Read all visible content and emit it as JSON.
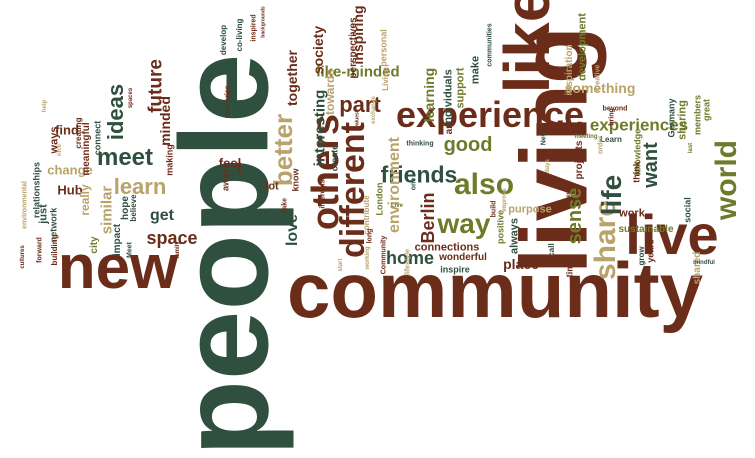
{
  "palette": {
    "dark_green": "#2f4f3f",
    "brown": "#6b2d1a",
    "olive": "#6f7a2a",
    "tan": "#b9a36a",
    "background": "#ffffff"
  },
  "words": [
    {
      "text": "people",
      "color": "dark_green"
    },
    {
      "text": "community",
      "color": "brown"
    },
    {
      "text": "living",
      "color": "brown"
    },
    {
      "text": "like",
      "color": "brown"
    },
    {
      "text": "new",
      "color": "brown"
    },
    {
      "text": "live",
      "color": "brown"
    },
    {
      "text": "experience",
      "color": "brown"
    },
    {
      "text": "others",
      "color": "brown"
    },
    {
      "text": "different",
      "color": "brown"
    },
    {
      "text": "also",
      "color": "olive"
    },
    {
      "text": "share",
      "color": "tan"
    },
    {
      "text": "world",
      "color": "olive"
    },
    {
      "text": "learn",
      "color": "tan"
    },
    {
      "text": "way",
      "color": "olive"
    },
    {
      "text": "meet",
      "color": "dark_green"
    },
    {
      "text": "better",
      "color": "tan"
    },
    {
      "text": "friends",
      "color": "dark_green"
    },
    {
      "text": "life",
      "color": "dark_green"
    },
    {
      "text": "want",
      "color": "dark_green"
    },
    {
      "text": "ideas",
      "color": "dark_green"
    },
    {
      "text": "future",
      "color": "brown"
    },
    {
      "text": "part",
      "color": "brown"
    },
    {
      "text": "space",
      "color": "brown"
    },
    {
      "text": "experiences",
      "color": "olive"
    },
    {
      "text": "good",
      "color": "olive"
    },
    {
      "text": "love",
      "color": "dark_green"
    },
    {
      "text": "home",
      "color": "dark_green"
    },
    {
      "text": "Berlin",
      "color": "brown"
    },
    {
      "text": "sense",
      "color": "olive"
    },
    {
      "text": "environment",
      "color": "tan"
    },
    {
      "text": "interesting",
      "color": "dark_green"
    },
    {
      "text": "like-minded",
      "color": "olive"
    },
    {
      "text": "inspiring",
      "color": "brown"
    },
    {
      "text": "society",
      "color": "brown"
    },
    {
      "text": "together",
      "color": "brown"
    },
    {
      "text": "something",
      "color": "tan"
    },
    {
      "text": "place",
      "color": "brown"
    },
    {
      "text": "get",
      "color": "dark_green"
    },
    {
      "text": "similar",
      "color": "tan"
    },
    {
      "text": "Hub",
      "color": "brown"
    },
    {
      "text": "change",
      "color": "tan"
    },
    {
      "text": "find",
      "color": "brown"
    },
    {
      "text": "ways",
      "color": "brown"
    },
    {
      "text": "just",
      "color": "dark_green"
    },
    {
      "text": "city",
      "color": "olive"
    },
    {
      "text": "really",
      "color": "tan"
    },
    {
      "text": "network",
      "color": "dark_green"
    },
    {
      "text": "relationships",
      "color": "dark_green"
    },
    {
      "text": "connect",
      "color": "dark_green"
    },
    {
      "text": "meaningful",
      "color": "brown"
    },
    {
      "text": "creating",
      "color": "brown"
    },
    {
      "text": "minded",
      "color": "brown"
    },
    {
      "text": "making",
      "color": "brown"
    },
    {
      "text": "impact",
      "color": "dark_green"
    },
    {
      "text": "hope",
      "color": "dark_green"
    },
    {
      "text": "believe",
      "color": "dark_green"
    },
    {
      "text": "feel",
      "color": "brown"
    },
    {
      "text": "away",
      "color": "brown"
    },
    {
      "text": "lot",
      "color": "brown"
    },
    {
      "text": "know",
      "color": "brown"
    },
    {
      "text": "towards",
      "color": "tan"
    },
    {
      "text": "create",
      "color": "dark_green"
    },
    {
      "text": "perspectives",
      "color": "brown"
    },
    {
      "text": "personal",
      "color": "tan"
    },
    {
      "text": "learning",
      "color": "olive"
    },
    {
      "text": "support",
      "color": "olive"
    },
    {
      "text": "individuals",
      "color": "dark_green"
    },
    {
      "text": "make",
      "color": "dark_green"
    },
    {
      "text": "connections",
      "color": "brown"
    },
    {
      "text": "positive",
      "color": "olive"
    },
    {
      "text": "purpose",
      "color": "tan"
    },
    {
      "text": "always",
      "color": "dark_green"
    },
    {
      "text": "work",
      "color": "brown"
    },
    {
      "text": "time",
      "color": "brown"
    },
    {
      "text": "projects",
      "color": "brown"
    },
    {
      "text": "sustainable",
      "color": "olive"
    },
    {
      "text": "knowledge",
      "color": "olive"
    },
    {
      "text": "think",
      "color": "brown"
    },
    {
      "text": "social",
      "color": "dark_green"
    },
    {
      "text": "years",
      "color": "brown"
    },
    {
      "text": "grow",
      "color": "dark_green"
    },
    {
      "text": "shared",
      "color": "tan"
    },
    {
      "text": "inspiration",
      "color": "tan"
    },
    {
      "text": "development",
      "color": "olive"
    },
    {
      "text": "sharing",
      "color": "olive"
    },
    {
      "text": "creative",
      "color": "tan"
    },
    {
      "text": "wonderful",
      "color": "brown"
    },
    {
      "text": "inspire",
      "color": "dark_green"
    },
    {
      "text": "art",
      "color": "brown"
    },
    {
      "text": "values",
      "color": "brown"
    },
    {
      "text": "develop",
      "color": "dark_green"
    },
    {
      "text": "co-living",
      "color": "dark_green"
    },
    {
      "text": "inspired",
      "color": "brown"
    },
    {
      "text": "backgrounds",
      "color": "brown"
    },
    {
      "text": "memories",
      "color": "brown"
    },
    {
      "text": "Living",
      "color": "tan"
    },
    {
      "text": "communities",
      "color": "dark_green"
    },
    {
      "text": "London",
      "color": "olive"
    },
    {
      "text": "contribute",
      "color": "tan"
    },
    {
      "text": "Community",
      "color": "brown"
    },
    {
      "text": "long",
      "color": "brown"
    },
    {
      "text": "interests",
      "color": "brown"
    },
    {
      "text": "Germany",
      "color": "dark_green"
    },
    {
      "text": "great",
      "color": "olive"
    },
    {
      "text": "members",
      "color": "olive"
    },
    {
      "text": "Learn",
      "color": "dark_green"
    },
    {
      "text": "beyond",
      "color": "brown"
    },
    {
      "text": "bring",
      "color": "brown"
    },
    {
      "text": "order",
      "color": "tan"
    },
    {
      "text": "New",
      "color": "dark_green"
    },
    {
      "text": "thinking",
      "color": "dark_green"
    },
    {
      "text": "one",
      "color": "dark_green"
    },
    {
      "text": "build",
      "color": "brown"
    },
    {
      "text": "lifestyle",
      "color": "tan"
    },
    {
      "text": "call",
      "color": "dark_green"
    },
    {
      "text": "building",
      "color": "brown"
    },
    {
      "text": "forward",
      "color": "brown"
    },
    {
      "text": "environmental",
      "color": "tan"
    },
    {
      "text": "cultures",
      "color": "brown"
    },
    {
      "text": "Meet",
      "color": "dark_green"
    },
    {
      "text": "help",
      "color": "tan"
    },
    {
      "text": "nice",
      "color": "tan"
    },
    {
      "text": "exchange",
      "color": "tan"
    },
    {
      "text": "mindful",
      "color": "dark_green"
    },
    {
      "text": "working",
      "color": "tan"
    },
    {
      "text": "meeting",
      "color": "olive"
    },
    {
      "text": "Live",
      "color": "olive"
    },
    {
      "text": "improve",
      "color": "tan"
    },
    {
      "text": "take",
      "color": "brown"
    },
    {
      "text": "family",
      "color": "brown"
    },
    {
      "text": "well",
      "color": "brown"
    },
    {
      "text": "spaces",
      "color": "brown"
    },
    {
      "text": "last",
      "color": "olive"
    },
    {
      "text": "days",
      "color": "tan"
    },
    {
      "text": "fled",
      "color": "brown"
    },
    {
      "text": "start",
      "color": "tan"
    }
  ]
}
